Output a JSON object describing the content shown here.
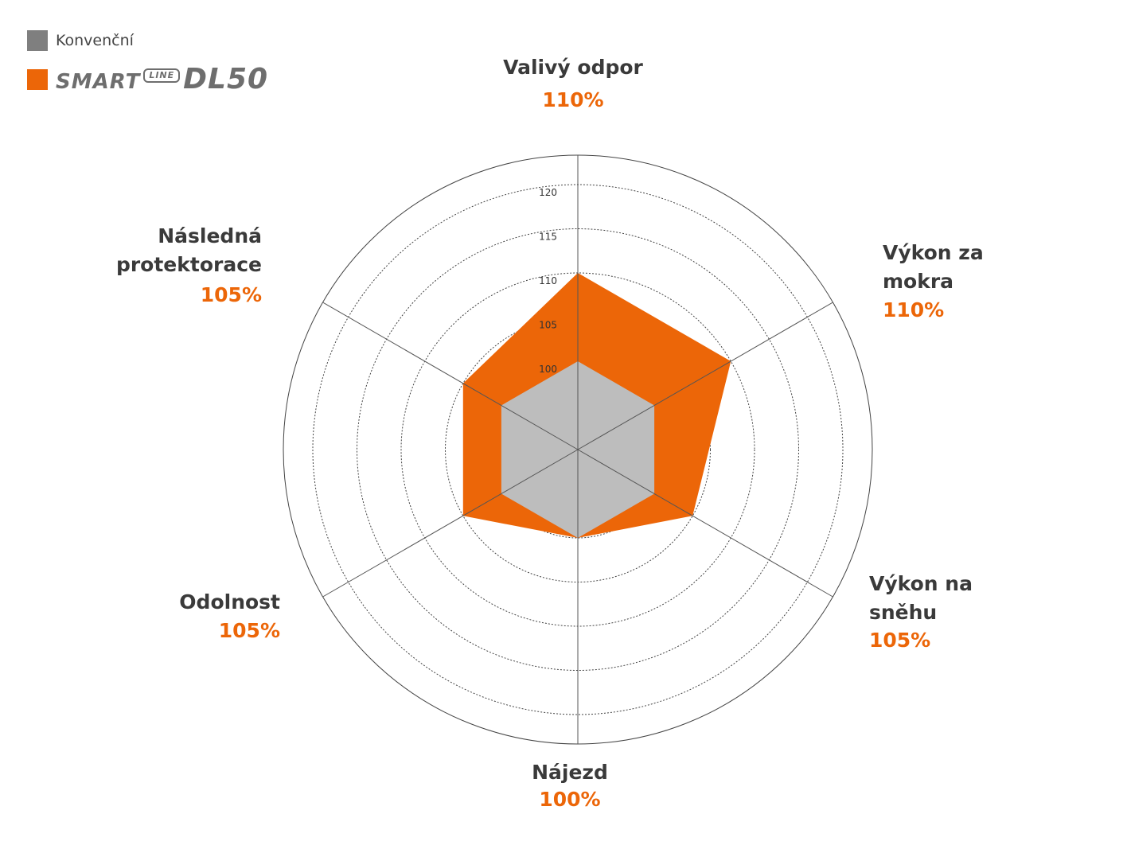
{
  "legend": {
    "conventional_label": "Konvenční",
    "product_logo": {
      "smart": "SMART",
      "line": "LINE",
      "model": "DL50"
    }
  },
  "colors": {
    "conventional": "#bdbdbd",
    "conventional_swatch": "#7f7f7f",
    "product": "#ec6608",
    "text": "#3a3a3a",
    "grid": "#555555"
  },
  "chart_data": {
    "type": "radar",
    "axes": [
      {
        "label": [
          "Valivý odpor"
        ],
        "value_label": "110%"
      },
      {
        "label": [
          "Výkon za",
          "mokra"
        ],
        "value_label": "110%"
      },
      {
        "label": [
          "Výkon na",
          "sněhu"
        ],
        "value_label": "105%"
      },
      {
        "label": [
          "Nájezd"
        ],
        "value_label": "100%"
      },
      {
        "label": [
          "Odolnost"
        ],
        "value_label": "105%"
      },
      {
        "label": [
          "Následná",
          "protektorace"
        ],
        "value_label": "105%"
      }
    ],
    "ticks": [
      100,
      105,
      110,
      115,
      120
    ],
    "range": [
      90,
      120
    ],
    "series": [
      {
        "name": "Konvenční",
        "values": [
          100,
          100,
          100,
          100,
          100,
          100
        ]
      },
      {
        "name": "SMART LINE DL50",
        "values": [
          110,
          110,
          105,
          100,
          105,
          105
        ]
      }
    ],
    "grid": "dotted rings",
    "legend_position": "top-left"
  }
}
